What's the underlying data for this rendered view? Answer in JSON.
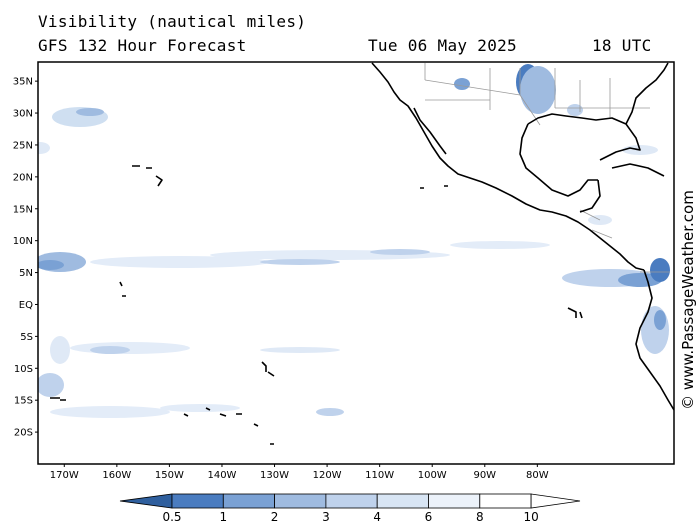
{
  "header": {
    "title": "Visibility (nautical miles)",
    "subtitle": "GFS 132 Hour Forecast",
    "date": "Tue 06 May 2025",
    "time": "18 UTC"
  },
  "credit": "© www.PassageWeather.com",
  "map": {
    "lon_range": [
      -175,
      -54
    ],
    "lat_range": [
      -25,
      38
    ],
    "lat_ticks": [
      "35N",
      "30N",
      "25N",
      "20N",
      "15N",
      "10N",
      "5N",
      "EQ",
      "5S",
      "10S",
      "15S",
      "20S"
    ],
    "lat_tick_values": [
      35,
      30,
      25,
      20,
      15,
      10,
      5,
      0,
      -5,
      -10,
      -15,
      -20
    ],
    "lon_ticks": [
      "170W",
      "160W",
      "150W",
      "140W",
      "130W",
      "120W",
      "110W",
      "100W",
      "90W",
      "80W"
    ],
    "lon_tick_values": [
      -170,
      -160,
      -150,
      -140,
      -130,
      -120,
      -110,
      -100,
      -90,
      -80
    ],
    "colors": {
      "coast": "#000000",
      "borders": "#9a9a9a",
      "low_vis": "#3f6fb4",
      "mid_vis": "#7fa6d6",
      "high_vis": "#cfdff1"
    }
  },
  "colorbar": {
    "labels": [
      "0.5",
      "1",
      "2",
      "3",
      "4",
      "6",
      "8",
      "10"
    ],
    "colors": [
      "#2f5f9e",
      "#4a7cc0",
      "#7aa1d4",
      "#9fbbe0",
      "#bfd2ec",
      "#d8e5f4",
      "#ecf2fa",
      "#ffffff",
      "#ffffff"
    ]
  }
}
